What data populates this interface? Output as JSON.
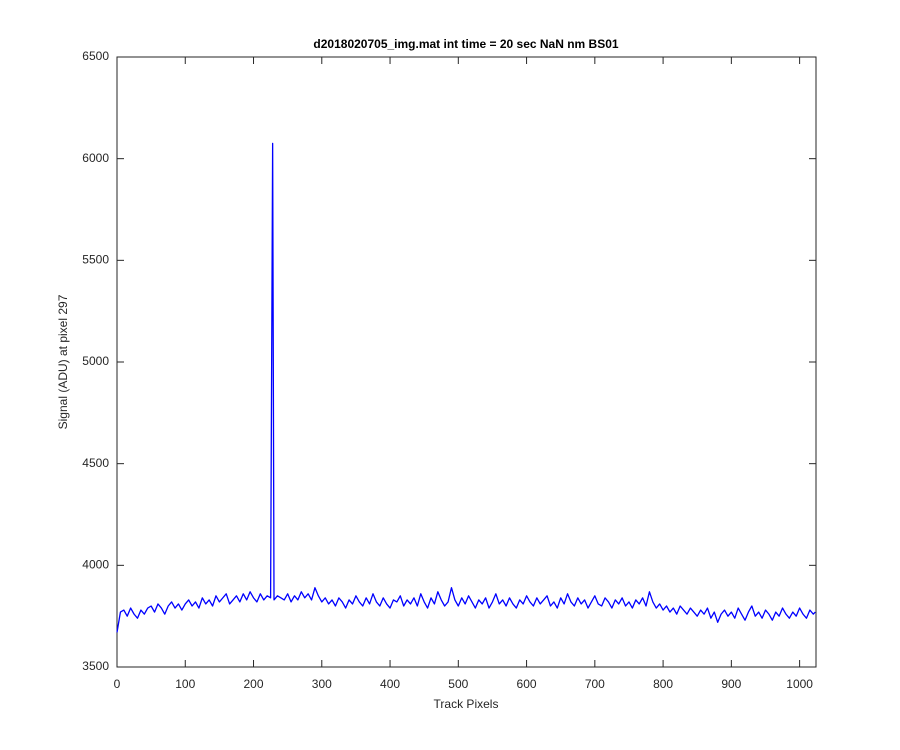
{
  "chart_data": {
    "type": "line",
    "title": "d2018020705_img.mat int time = 20 sec  NaN nm BS01",
    "x_label": "Track Pixels",
    "y_label": "Signal (ADU) at pixel 297",
    "x": [
      0,
      5,
      10,
      15,
      20,
      25,
      30,
      35,
      40,
      45,
      50,
      55,
      60,
      65,
      70,
      75,
      80,
      85,
      90,
      95,
      100,
      105,
      110,
      115,
      120,
      125,
      130,
      135,
      140,
      145,
      150,
      155,
      160,
      165,
      170,
      175,
      180,
      185,
      190,
      195,
      200,
      205,
      210,
      215,
      220,
      225,
      228,
      230,
      235,
      240,
      245,
      250,
      255,
      260,
      265,
      270,
      275,
      280,
      285,
      290,
      295,
      300,
      305,
      310,
      315,
      320,
      325,
      330,
      335,
      340,
      345,
      350,
      355,
      360,
      365,
      370,
      375,
      380,
      385,
      390,
      395,
      400,
      405,
      410,
      415,
      420,
      425,
      430,
      435,
      440,
      445,
      450,
      455,
      460,
      465,
      470,
      475,
      480,
      485,
      490,
      495,
      500,
      505,
      510,
      515,
      520,
      525,
      530,
      535,
      540,
      545,
      550,
      555,
      560,
      565,
      570,
      575,
      580,
      585,
      590,
      595,
      600,
      605,
      610,
      615,
      620,
      625,
      630,
      635,
      640,
      645,
      650,
      655,
      660,
      665,
      670,
      675,
      680,
      685,
      690,
      695,
      700,
      705,
      710,
      715,
      720,
      725,
      730,
      735,
      740,
      745,
      750,
      755,
      760,
      765,
      770,
      775,
      780,
      785,
      790,
      795,
      800,
      805,
      810,
      815,
      820,
      825,
      830,
      835,
      840,
      845,
      850,
      855,
      860,
      865,
      870,
      875,
      880,
      885,
      890,
      895,
      900,
      905,
      910,
      915,
      920,
      925,
      930,
      935,
      940,
      945,
      950,
      955,
      960,
      965,
      970,
      975,
      980,
      985,
      990,
      995,
      1000,
      1005,
      1010,
      1015,
      1020,
      1023
    ],
    "series": [
      {
        "name": "signal",
        "color": "#0000ff",
        "values": [
          3670,
          3770,
          3780,
          3750,
          3790,
          3760,
          3740,
          3780,
          3760,
          3790,
          3800,
          3770,
          3810,
          3790,
          3760,
          3800,
          3820,
          3790,
          3810,
          3780,
          3810,
          3830,
          3800,
          3820,
          3790,
          3840,
          3810,
          3830,
          3800,
          3850,
          3820,
          3840,
          3860,
          3810,
          3830,
          3850,
          3820,
          3860,
          3830,
          3870,
          3840,
          3820,
          3860,
          3830,
          3850,
          3840,
          6075,
          3830,
          3850,
          3840,
          3830,
          3860,
          3820,
          3850,
          3830,
          3870,
          3840,
          3860,
          3830,
          3890,
          3850,
          3820,
          3840,
          3810,
          3830,
          3800,
          3840,
          3820,
          3790,
          3830,
          3810,
          3850,
          3820,
          3800,
          3840,
          3810,
          3860,
          3820,
          3800,
          3840,
          3810,
          3790,
          3830,
          3820,
          3850,
          3800,
          3830,
          3810,
          3840,
          3800,
          3860,
          3820,
          3790,
          3840,
          3810,
          3870,
          3830,
          3800,
          3820,
          3890,
          3830,
          3800,
          3840,
          3810,
          3850,
          3820,
          3790,
          3830,
          3810,
          3840,
          3790,
          3820,
          3860,
          3810,
          3830,
          3800,
          3840,
          3810,
          3790,
          3830,
          3810,
          3850,
          3820,
          3800,
          3840,
          3810,
          3830,
          3850,
          3800,
          3820,
          3790,
          3840,
          3810,
          3860,
          3820,
          3800,
          3840,
          3810,
          3830,
          3790,
          3820,
          3850,
          3810,
          3800,
          3840,
          3820,
          3790,
          3830,
          3810,
          3840,
          3800,
          3820,
          3790,
          3830,
          3810,
          3840,
          3800,
          3870,
          3820,
          3790,
          3810,
          3780,
          3800,
          3770,
          3790,
          3760,
          3800,
          3780,
          3760,
          3790,
          3770,
          3750,
          3780,
          3760,
          3790,
          3740,
          3770,
          3720,
          3760,
          3780,
          3750,
          3770,
          3740,
          3790,
          3760,
          3730,
          3770,
          3800,
          3750,
          3770,
          3740,
          3780,
          3760,
          3730,
          3770,
          3750,
          3790,
          3760,
          3740,
          3770,
          3750,
          3790,
          3760,
          3740,
          3780,
          3760,
          3770
        ]
      }
    ],
    "xlim": [
      0,
      1024
    ],
    "ylim": [
      3500,
      6500
    ],
    "xticks": [
      0,
      100,
      200,
      300,
      400,
      500,
      600,
      700,
      800,
      900,
      1000
    ],
    "yticks": [
      3500,
      4000,
      4500,
      5000,
      5500,
      6000,
      6500
    ]
  }
}
